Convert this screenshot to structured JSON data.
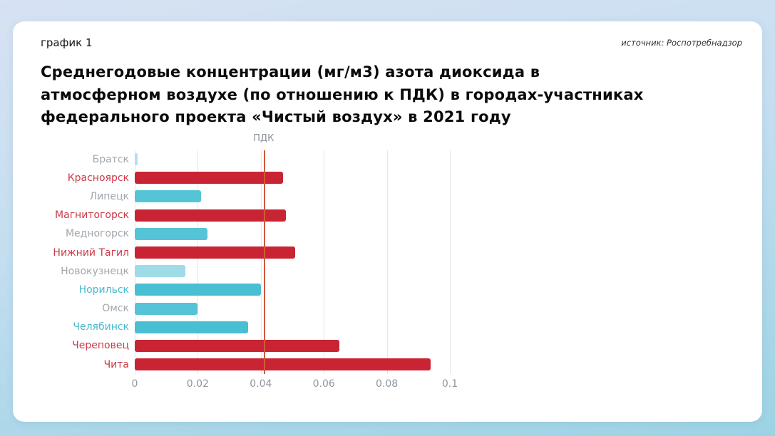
{
  "header": {
    "chart_label": "график 1",
    "source": "источник: Роспотребнадзор"
  },
  "title": "Среднегодовые концентрации (мг/м3) азота диоксида в атмосферном воздухе (по отношению к ПДК) в городах-участниках федерального проекта «Чистый воздух» в 2021 году",
  "chart_data": {
    "type": "bar",
    "orientation": "horizontal",
    "title": "Среднегодовые концентрации (мг/м3) азота диоксида в атмосферном воздухе (по отношению к ПДК) в городах-участниках федерального проекта «Чистый воздух» в 2021 году",
    "xlabel": "",
    "ylabel": "",
    "xlim": [
      0,
      0.1
    ],
    "x_ticks": [
      0,
      0.02,
      0.04,
      0.06,
      0.08,
      0.1
    ],
    "x_tick_labels": [
      "0",
      "0.02",
      "0.04",
      "0.06",
      "0.08",
      "0.1"
    ],
    "grid": true,
    "legend": false,
    "reference_line": {
      "label": "ПДК",
      "value": 0.04,
      "color": "#d05a3d"
    },
    "categories": [
      "Братск",
      "Красноярск",
      "Липецк",
      "Магнитогорск",
      "Медногорск",
      "Нижний Тагил",
      "Новокузнецк",
      "Норильск",
      "Омск",
      "Челябинск",
      "Череповец",
      "Чита"
    ],
    "values": [
      0.001,
      0.047,
      0.021,
      0.048,
      0.023,
      0.051,
      0.016,
      0.04,
      0.02,
      0.036,
      0.065,
      0.094
    ],
    "bar_colors": [
      "#b7e0ea",
      "#c92433",
      "#55c4d6",
      "#c92433",
      "#55c4d6",
      "#c92433",
      "#9edce8",
      "#49bfd3",
      "#55c4d6",
      "#49bfd3",
      "#c92433",
      "#c92433"
    ],
    "label_colors": [
      "#a0a7ad",
      "#cb3a49",
      "#a0a7ad",
      "#cb3a49",
      "#a0a7ad",
      "#cb3a49",
      "#a0a7ad",
      "#48b9cd",
      "#a0a7ad",
      "#48b9cd",
      "#cb3a49",
      "#cb3a49"
    ]
  }
}
